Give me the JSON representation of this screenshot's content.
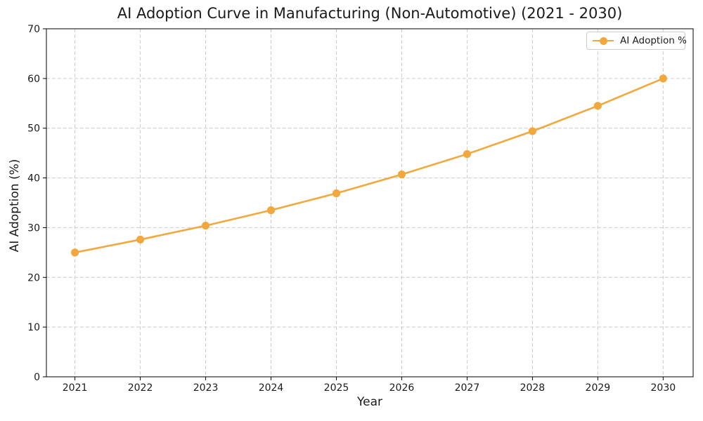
{
  "figure": {
    "background_color": "#ffffff",
    "text_color": "#1a1a1a",
    "spine_color": "#000000",
    "grid_color": "#cccccc"
  },
  "chart_data": {
    "type": "line",
    "title": "AI Adoption Curve in Manufacturing (Non-Automotive) (2021 - 2030)",
    "xlabel": "Year",
    "ylabel": "AI Adoption (%)",
    "x": [
      2021,
      2022,
      2023,
      2024,
      2025,
      2026,
      2027,
      2028,
      2029,
      2030
    ],
    "series": [
      {
        "name": "AI Adoption %",
        "values": [
          25.0,
          27.6,
          30.4,
          33.5,
          36.9,
          40.7,
          44.8,
          49.4,
          54.5,
          60.0
        ],
        "color": "#F2A83D",
        "marker": "circle",
        "line_style": "solid"
      }
    ],
    "ylim": [
      0,
      70
    ],
    "yticks": [
      0,
      10,
      20,
      30,
      40,
      50,
      60,
      70
    ],
    "grid": true,
    "grid_style": "dashed",
    "legend": {
      "position": "upper-right",
      "entries": [
        "AI Adoption %"
      ]
    }
  }
}
